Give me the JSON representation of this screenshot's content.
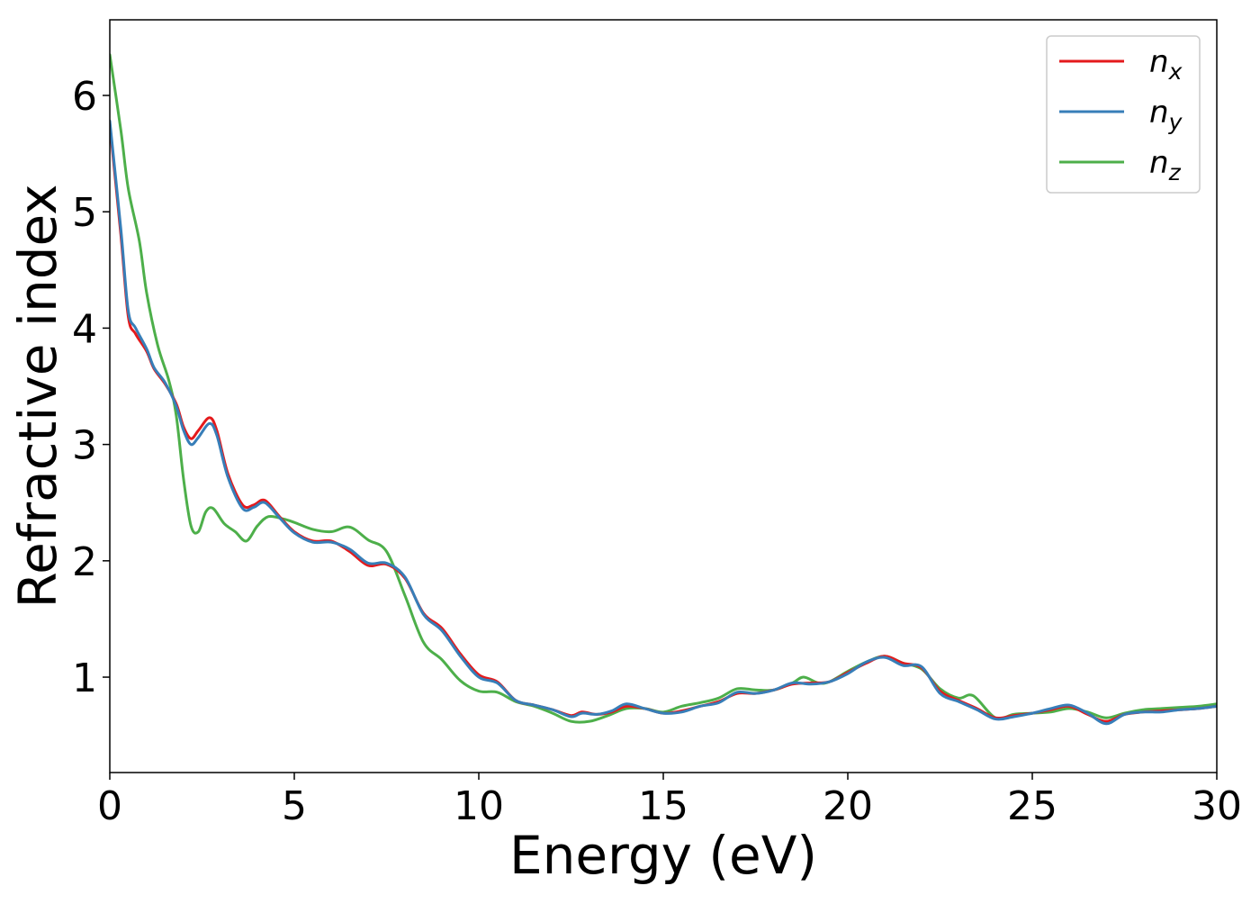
{
  "chart_data": {
    "type": "line",
    "title": "",
    "xlabel": "Energy (eV)",
    "ylabel": "Refractive index",
    "xlim": [
      0,
      30
    ],
    "ylim": [
      0.18,
      6.65
    ],
    "xticks": [
      0,
      5,
      10,
      15,
      20,
      25,
      30
    ],
    "xtick_labels": [
      "0",
      "5",
      "10",
      "15",
      "20",
      "25",
      "30"
    ],
    "yticks": [
      1,
      2,
      3,
      4,
      5,
      6
    ],
    "ytick_labels": [
      "1",
      "2",
      "3",
      "4",
      "5",
      "6"
    ],
    "grid": false,
    "legend_position": "top-right",
    "series": [
      {
        "name": "n_x",
        "legend_main": "n",
        "legend_sub": "x",
        "color": "#e41a1c",
        "x": [
          0,
          0.3,
          0.5,
          0.7,
          1.0,
          1.2,
          1.5,
          1.8,
          2.0,
          2.2,
          2.4,
          2.7,
          2.9,
          3.2,
          3.6,
          3.9,
          4.2,
          4.6,
          5.0,
          5.5,
          6.0,
          6.5,
          7.0,
          7.5,
          8.0,
          8.5,
          9.0,
          9.5,
          10.0,
          10.5,
          11.0,
          11.5,
          12.0,
          12.5,
          12.8,
          13.2,
          13.6,
          14.0,
          14.5,
          15.0,
          15.5,
          16.0,
          16.5,
          17.0,
          17.5,
          18.0,
          18.5,
          19.0,
          19.5,
          20.0,
          20.5,
          21.0,
          21.5,
          22.0,
          22.5,
          23.0,
          23.5,
          24.0,
          24.5,
          25.0,
          25.5,
          26.0,
          26.5,
          27.0,
          27.5,
          28.0,
          28.5,
          29.0,
          29.5,
          30.0
        ],
        "y": [
          5.75,
          4.8,
          4.1,
          3.95,
          3.8,
          3.65,
          3.52,
          3.35,
          3.15,
          3.05,
          3.12,
          3.23,
          3.12,
          2.75,
          2.48,
          2.48,
          2.52,
          2.38,
          2.25,
          2.17,
          2.17,
          2.08,
          1.96,
          1.97,
          1.85,
          1.55,
          1.42,
          1.2,
          1.02,
          0.96,
          0.8,
          0.76,
          0.72,
          0.67,
          0.7,
          0.68,
          0.7,
          0.75,
          0.73,
          0.69,
          0.71,
          0.75,
          0.79,
          0.86,
          0.86,
          0.89,
          0.94,
          0.95,
          0.96,
          1.04,
          1.12,
          1.18,
          1.12,
          1.08,
          0.88,
          0.8,
          0.73,
          0.65,
          0.67,
          0.69,
          0.72,
          0.75,
          0.68,
          0.62,
          0.68,
          0.7,
          0.71,
          0.72,
          0.73,
          0.75
        ]
      },
      {
        "name": "n_y",
        "legend_main": "n",
        "legend_sub": "y",
        "color": "#377eb8",
        "x": [
          0,
          0.3,
          0.5,
          0.7,
          1.0,
          1.2,
          1.5,
          1.8,
          2.0,
          2.2,
          2.4,
          2.7,
          2.9,
          3.2,
          3.6,
          3.9,
          4.2,
          4.6,
          5.0,
          5.5,
          6.0,
          6.5,
          7.0,
          7.5,
          8.0,
          8.5,
          9.0,
          9.5,
          10.0,
          10.5,
          11.0,
          11.5,
          12.0,
          12.5,
          12.8,
          13.2,
          13.6,
          14.0,
          14.5,
          15.0,
          15.5,
          16.0,
          16.5,
          17.0,
          17.5,
          18.0,
          18.5,
          19.0,
          19.5,
          20.0,
          20.5,
          21.0,
          21.5,
          22.0,
          22.5,
          23.0,
          23.5,
          24.0,
          24.5,
          25.0,
          25.5,
          26.0,
          26.5,
          27.0,
          27.5,
          28.0,
          28.5,
          29.0,
          29.5,
          30.0
        ],
        "y": [
          5.78,
          4.85,
          4.15,
          4.0,
          3.82,
          3.66,
          3.53,
          3.33,
          3.12,
          3.0,
          3.06,
          3.18,
          3.08,
          2.72,
          2.45,
          2.46,
          2.5,
          2.37,
          2.24,
          2.16,
          2.16,
          2.1,
          1.98,
          1.98,
          1.86,
          1.54,
          1.4,
          1.18,
          1.0,
          0.95,
          0.8,
          0.76,
          0.72,
          0.66,
          0.69,
          0.68,
          0.71,
          0.77,
          0.73,
          0.69,
          0.7,
          0.75,
          0.78,
          0.87,
          0.86,
          0.89,
          0.95,
          0.94,
          0.96,
          1.03,
          1.13,
          1.17,
          1.1,
          1.09,
          0.86,
          0.79,
          0.72,
          0.64,
          0.66,
          0.69,
          0.73,
          0.76,
          0.69,
          0.6,
          0.68,
          0.7,
          0.7,
          0.72,
          0.73,
          0.75
        ]
      },
      {
        "name": "n_z",
        "legend_main": "n",
        "legend_sub": "z",
        "color": "#4daf4a",
        "x": [
          0,
          0.3,
          0.5,
          0.8,
          1.0,
          1.3,
          1.6,
          1.8,
          2.0,
          2.2,
          2.4,
          2.6,
          2.8,
          3.1,
          3.4,
          3.7,
          4.0,
          4.3,
          4.7,
          5.0,
          5.5,
          6.0,
          6.5,
          7.0,
          7.5,
          8.0,
          8.5,
          9.0,
          9.5,
          10.0,
          10.5,
          11.0,
          11.5,
          12.0,
          12.5,
          13.0,
          13.5,
          14.0,
          14.5,
          15.0,
          15.5,
          16.0,
          16.5,
          17.0,
          17.5,
          18.0,
          18.5,
          18.8,
          19.2,
          19.5,
          20.0,
          20.5,
          21.0,
          21.5,
          22.0,
          22.5,
          23.0,
          23.4,
          24.0,
          24.5,
          25.0,
          25.5,
          26.0,
          26.5,
          27.0,
          27.5,
          28.0,
          28.5,
          29.0,
          29.5,
          30.0
        ],
        "y": [
          6.35,
          5.7,
          5.2,
          4.75,
          4.3,
          3.85,
          3.55,
          3.25,
          2.7,
          2.3,
          2.25,
          2.42,
          2.45,
          2.32,
          2.25,
          2.17,
          2.3,
          2.38,
          2.36,
          2.33,
          2.27,
          2.25,
          2.29,
          2.18,
          2.08,
          1.7,
          1.3,
          1.15,
          0.97,
          0.88,
          0.87,
          0.79,
          0.75,
          0.69,
          0.62,
          0.62,
          0.67,
          0.73,
          0.73,
          0.7,
          0.75,
          0.78,
          0.82,
          0.9,
          0.89,
          0.89,
          0.95,
          1.0,
          0.95,
          0.96,
          1.05,
          1.13,
          1.18,
          1.12,
          1.07,
          0.9,
          0.82,
          0.84,
          0.65,
          0.68,
          0.69,
          0.7,
          0.73,
          0.7,
          0.65,
          0.69,
          0.72,
          0.73,
          0.74,
          0.75,
          0.77
        ]
      }
    ]
  }
}
